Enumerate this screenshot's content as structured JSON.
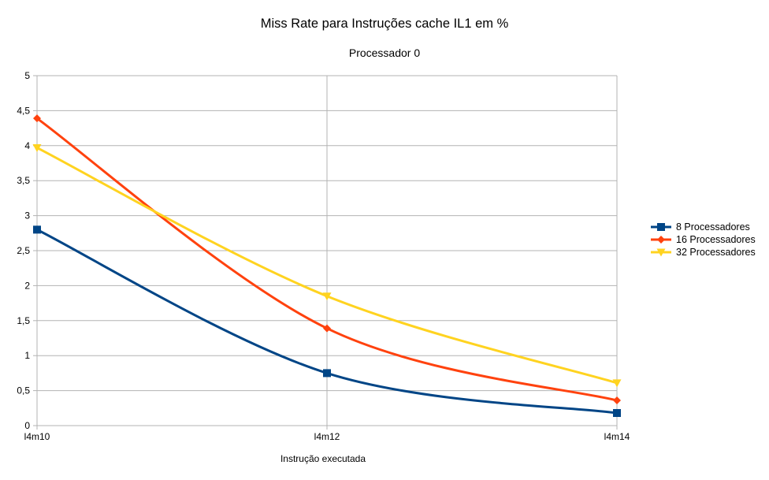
{
  "chart_data": {
    "type": "line",
    "title": "Miss Rate para Instruções cache IL1 em %",
    "subtitle": "Processador 0",
    "xlabel": "Instrução executada",
    "ylabel": "",
    "categories": [
      "l4m10",
      "l4m12",
      "l4m14"
    ],
    "ylim": [
      0,
      5
    ],
    "yticks": [
      "0",
      "0,5",
      "1",
      "1,5",
      "2",
      "2,5",
      "3",
      "3,5",
      "4",
      "4,5",
      "5"
    ],
    "grid": true,
    "legend_position": "right",
    "series": [
      {
        "name": "8 Processadores",
        "values": [
          2.8,
          0.75,
          0.18
        ],
        "color": "#004586",
        "marker": "square"
      },
      {
        "name": "16 Processadores",
        "values": [
          4.39,
          1.39,
          0.36
        ],
        "color": "#ff420e",
        "marker": "diamond"
      },
      {
        "name": "32 Processadores",
        "values": [
          3.97,
          1.85,
          0.61
        ],
        "color": "#ffd320",
        "marker": "triangle-down"
      }
    ]
  }
}
